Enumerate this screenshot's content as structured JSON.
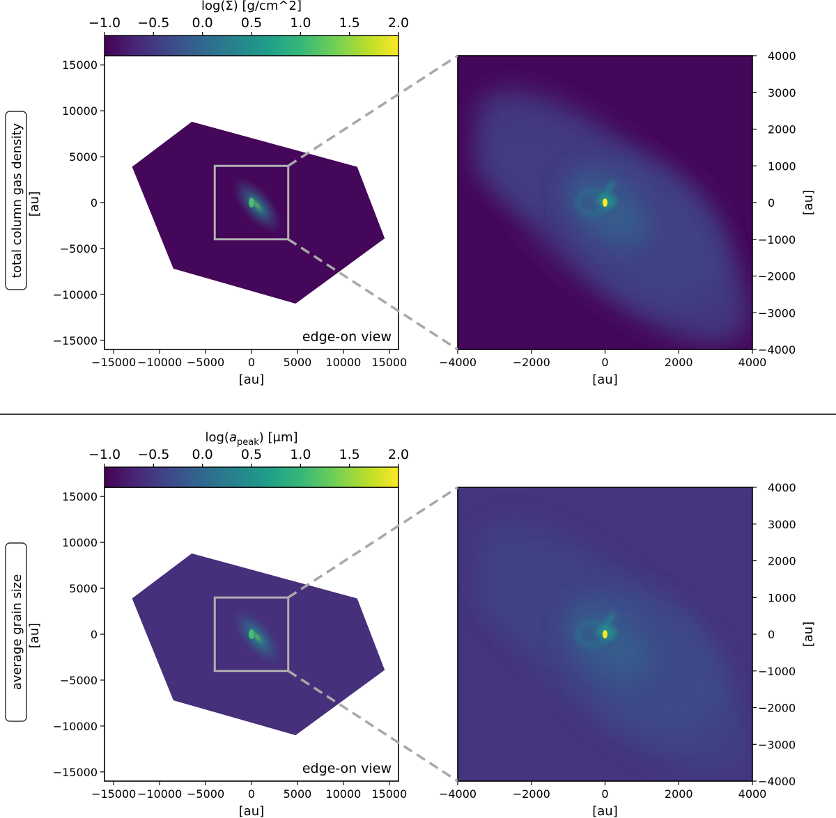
{
  "colors": {
    "viridis": [
      "#440154",
      "#482878",
      "#3e4989",
      "#31688e",
      "#26828e",
      "#1f9e89",
      "#35b779",
      "#6ece58",
      "#b5de2b",
      "#fde725"
    ],
    "inset_box": "#b0b0b0",
    "connector": "#a8a8a8",
    "separator": "#000000"
  },
  "chart_data": [
    {
      "type": "heatmap",
      "panel": "gas-density-edge-on",
      "row_label": "total column gas density",
      "colorbar": {
        "label": "log(Σ) [g/cm^2]",
        "range": [
          -1.0,
          2.0
        ],
        "ticks": [
          "−1.0",
          "−0.5",
          "0.0",
          "0.5",
          "1.0",
          "1.5",
          "2.0"
        ]
      },
      "annotation": "edge-on view",
      "xlabel": "[au]",
      "ylabel": "[au]",
      "xlim": [
        -16000,
        16000
      ],
      "ylim": [
        -16000,
        16000
      ],
      "xticks": [
        "−15000",
        "−10000",
        "−5000",
        "0",
        "5000",
        "10000",
        "15000"
      ],
      "yticks": [
        "15000",
        "10000",
        "5000",
        "0",
        "−5000",
        "−10000",
        "−15000"
      ],
      "background_value": -0.95,
      "region_polygon": [
        [
          -6500,
          8800
        ],
        [
          11500,
          3900
        ],
        [
          14500,
          -3900
        ],
        [
          4800,
          -11000
        ],
        [
          -8500,
          -7200
        ],
        [
          -13000,
          3900
        ]
      ],
      "zoom_box": [
        -4000,
        4000,
        -4000,
        4000
      ]
    },
    {
      "type": "heatmap",
      "panel": "gas-density-zoom",
      "xlabel": "[au]",
      "ylabel": "[au]",
      "xlim": [
        -4000,
        4000
      ],
      "ylim": [
        -4000,
        4000
      ],
      "xticks": [
        "−4000",
        "−2000",
        "0",
        "2000",
        "4000"
      ],
      "yticks": [
        "4000",
        "3000",
        "2000",
        "1000",
        "0",
        "−1000",
        "−2000",
        "−3000",
        "−4000"
      ],
      "background_value": -0.95,
      "peak_value": 2.0
    },
    {
      "type": "heatmap",
      "panel": "grain-size-edge-on",
      "row_label": "average grain size",
      "colorbar": {
        "label_prefix": "log(",
        "label_symbol": "a",
        "label_sub": "peak",
        "label_suffix": ") [μm]",
        "range": [
          -1.0,
          2.0
        ],
        "ticks": [
          "−1.0",
          "−0.5",
          "0.0",
          "0.5",
          "1.0",
          "1.5",
          "2.0"
        ]
      },
      "annotation": "edge-on view",
      "xlabel": "[au]",
      "ylabel": "[au]",
      "xlim": [
        -16000,
        16000
      ],
      "ylim": [
        -16000,
        16000
      ],
      "xticks": [
        "−15000",
        "−10000",
        "−5000",
        "0",
        "5000",
        "10000",
        "15000"
      ],
      "yticks": [
        "15000",
        "10000",
        "5000",
        "0",
        "−5000",
        "−10000",
        "−15000"
      ],
      "background_value": -0.6,
      "region_polygon": [
        [
          -6500,
          8800
        ],
        [
          11500,
          3900
        ],
        [
          14500,
          -3900
        ],
        [
          4800,
          -11000
        ],
        [
          -8500,
          -7200
        ],
        [
          -13000,
          3900
        ]
      ],
      "zoom_box": [
        -4000,
        4000,
        -4000,
        4000
      ]
    },
    {
      "type": "heatmap",
      "panel": "grain-size-zoom",
      "xlabel": "[au]",
      "ylabel": "[au]",
      "xlim": [
        -4000,
        4000
      ],
      "ylim": [
        -4000,
        4000
      ],
      "xticks": [
        "−4000",
        "−2000",
        "0",
        "2000",
        "4000"
      ],
      "yticks": [
        "4000",
        "3000",
        "2000",
        "1000",
        "0",
        "−1000",
        "−2000",
        "−3000",
        "−4000"
      ],
      "background_value": -0.55,
      "peak_value": 2.0
    }
  ]
}
